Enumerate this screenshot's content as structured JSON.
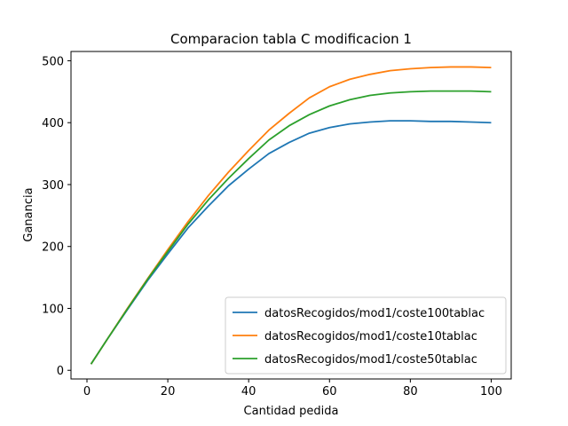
{
  "chart_data": {
    "type": "line",
    "title": "Comparacion tabla C modificacion 1",
    "xlabel": "Cantidad pedida",
    "ylabel": "Ganancia",
    "xlim": [
      -3.95,
      104.95
    ],
    "ylim": [
      -14.0,
      515.0
    ],
    "xticks": [
      0,
      20,
      40,
      60,
      80,
      100
    ],
    "yticks": [
      0,
      100,
      200,
      300,
      400,
      500
    ],
    "grid": false,
    "legend_position": "lower-right",
    "series": [
      {
        "name": "datosRecogidos/mod1/coste100tablac",
        "color": "#1f77b4",
        "x": [
          1,
          5,
          10,
          15,
          20,
          25,
          30,
          35,
          40,
          45,
          50,
          55,
          60,
          65,
          70,
          75,
          80,
          85,
          90,
          95,
          100
        ],
        "y": [
          10,
          50,
          98,
          145,
          188,
          230,
          265,
          298,
          325,
          350,
          368,
          383,
          392,
          398,
          401,
          403,
          403,
          402,
          402,
          401,
          400
        ]
      },
      {
        "name": "datosRecogidos/mod1/coste10tablac",
        "color": "#ff7f0e",
        "x": [
          1,
          5,
          10,
          15,
          20,
          25,
          30,
          35,
          40,
          45,
          50,
          55,
          60,
          65,
          70,
          75,
          80,
          85,
          90,
          95,
          100
        ],
        "y": [
          10,
          50,
          100,
          148,
          195,
          240,
          282,
          320,
          355,
          388,
          415,
          440,
          458,
          470,
          478,
          484,
          487,
          489,
          490,
          490,
          489
        ]
      },
      {
        "name": "datosRecogidos/mod1/coste50tablac",
        "color": "#2ca02c",
        "x": [
          1,
          5,
          10,
          15,
          20,
          25,
          30,
          35,
          40,
          45,
          50,
          55,
          60,
          65,
          70,
          75,
          80,
          85,
          90,
          95,
          100
        ],
        "y": [
          10,
          50,
          99,
          147,
          192,
          236,
          275,
          310,
          342,
          372,
          395,
          413,
          427,
          437,
          444,
          448,
          450,
          451,
          451,
          451,
          450
        ]
      }
    ]
  }
}
